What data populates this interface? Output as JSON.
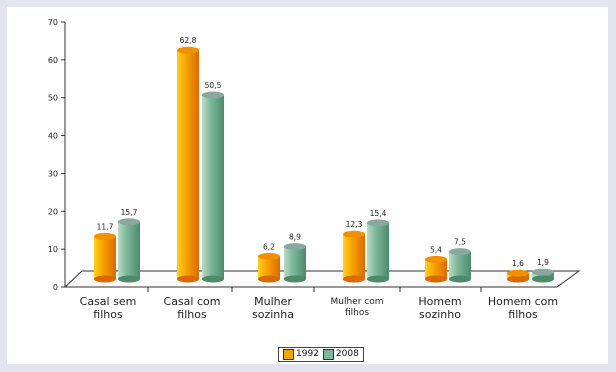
{
  "colors": {
    "s1992_light": "#ffd21a",
    "s1992_mid": "#f7a400",
    "s1992_dark": "#d96a00",
    "s1992_top": "#f39000",
    "s2008_light": "#b9dcc3",
    "s2008_mid": "#7cb79a",
    "s2008_dark": "#4d8a6b",
    "s2008_top": "#8aa8a0"
  },
  "chart_data": {
    "type": "bar",
    "categories": [
      [
        "Casal sem",
        "filhos"
      ],
      [
        "Casal com",
        "filhos"
      ],
      [
        "Mulher",
        "sozinha"
      ],
      [
        "Mulher com",
        "filhos"
      ],
      [
        "Homem",
        "sozinho"
      ],
      [
        "Homem com",
        "filhos"
      ]
    ],
    "series": [
      {
        "name": "1992",
        "values": [
          11.7,
          62.8,
          6.2,
          12.3,
          5.4,
          1.6
        ],
        "labels": [
          "11,7",
          "62,8",
          "6,2",
          "12,3",
          "5,4",
          "1,6"
        ]
      },
      {
        "name": "2008",
        "values": [
          15.7,
          50.5,
          8.9,
          15.4,
          7.5,
          1.9
        ],
        "labels": [
          "15,7",
          "50,5",
          "8,9",
          "15,4",
          "7,5",
          "1,9"
        ]
      }
    ],
    "ylim": [
      0,
      70
    ],
    "yticks": [
      "0",
      "10",
      "20",
      "30",
      "40",
      "50",
      "60",
      "70"
    ],
    "legend_position": "bottom-center",
    "grid": false,
    "style": "3d-cylinder"
  }
}
